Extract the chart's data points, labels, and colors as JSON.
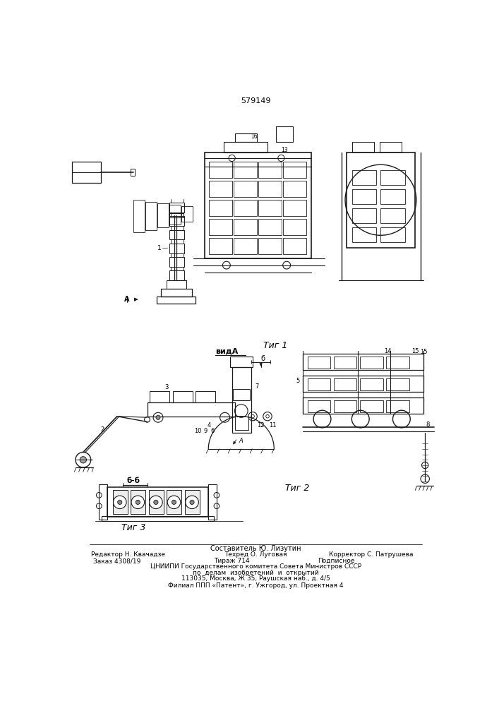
{
  "patent_number": "579149",
  "bg": "#f5f5f0",
  "lc": "#2a2a2a",
  "footer_lines": [
    "Составитель Ю. Лизутин",
    "Редактор Н. Квачадзе",
    "Техред О. Луговая",
    "Корректор С. Патрушева",
    "Заказ 4308/19",
    "Тираж 714",
    "Подписное",
    "ЦНИИПИ Государственного комитета Совета Министров СССР",
    "по  делам  изобретений  и  открытий",
    "113035, Москва, Ж 35, Раушская наб., д. 4/5",
    "Филиал ППП «Патент», г. Ужгород, ул. Проектная 4"
  ]
}
